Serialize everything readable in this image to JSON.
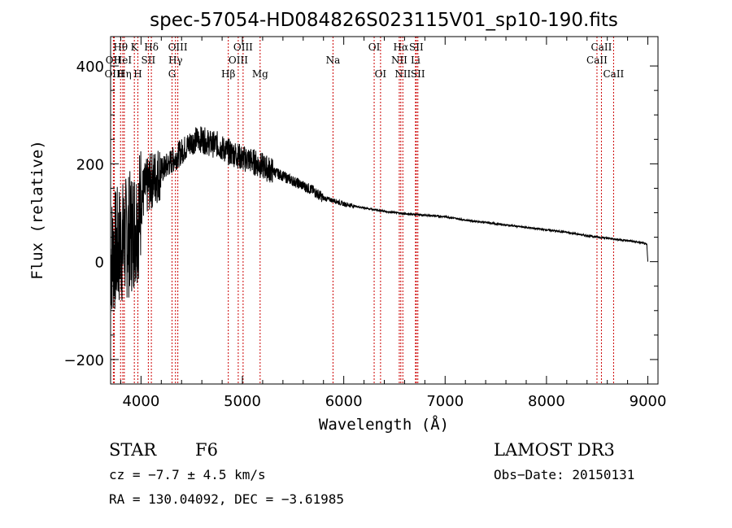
{
  "chart_data": {
    "type": "line",
    "title": "spec-57054-HD084826S023115V01_sp10-190.fits",
    "xlabel": "Wavelength (Å)",
    "ylabel": "Flux (relative)",
    "xlim": [
      3700,
      9100
    ],
    "ylim": [
      -250,
      460
    ],
    "x_ticks": [
      4000,
      5000,
      6000,
      7000,
      8000,
      9000
    ],
    "y_ticks": [
      -200,
      0,
      200,
      400
    ],
    "series": [
      {
        "name": "spectrum",
        "anchors": [
          [
            3700,
            10
          ],
          [
            3740,
            20
          ],
          [
            3780,
            30
          ],
          [
            3820,
            40
          ],
          [
            3860,
            50
          ],
          [
            3900,
            60
          ],
          [
            3940,
            75
          ],
          [
            3980,
            95
          ],
          [
            4000,
            130
          ],
          [
            4050,
            150
          ],
          [
            4100,
            165
          ],
          [
            4150,
            175
          ],
          [
            4200,
            185
          ],
          [
            4250,
            195
          ],
          [
            4300,
            205
          ],
          [
            4350,
            215
          ],
          [
            4400,
            225
          ],
          [
            4450,
            235
          ],
          [
            4500,
            245
          ],
          [
            4550,
            250
          ],
          [
            4600,
            250
          ],
          [
            4650,
            245
          ],
          [
            4700,
            240
          ],
          [
            4750,
            240
          ],
          [
            4800,
            232
          ],
          [
            4850,
            225
          ],
          [
            4900,
            222
          ],
          [
            4950,
            218
          ],
          [
            5000,
            210
          ],
          [
            5050,
            210
          ],
          [
            5100,
            205
          ],
          [
            5150,
            200
          ],
          [
            5200,
            195
          ],
          [
            5300,
            185
          ],
          [
            5400,
            175
          ],
          [
            5500,
            165
          ],
          [
            5600,
            155
          ],
          [
            5700,
            145
          ],
          [
            5800,
            130
          ],
          [
            5900,
            125
          ],
          [
            6000,
            118
          ],
          [
            6200,
            110
          ],
          [
            6400,
            103
          ],
          [
            6600,
            98
          ],
          [
            6800,
            95
          ],
          [
            7000,
            92
          ],
          [
            7200,
            85
          ],
          [
            7400,
            80
          ],
          [
            7600,
            75
          ],
          [
            7800,
            70
          ],
          [
            8000,
            65
          ],
          [
            8200,
            60
          ],
          [
            8400,
            53
          ],
          [
            8600,
            48
          ],
          [
            8800,
            43
          ],
          [
            8900,
            40
          ],
          [
            8950,
            38
          ],
          [
            8990,
            35
          ],
          [
            9000,
            0
          ]
        ]
      }
    ],
    "emission_lines": [
      {
        "label": "Hθ",
        "wavelength": 3798,
        "row": 1
      },
      {
        "label": "OII",
        "wavelength": 3727,
        "row": 2
      },
      {
        "label": "OIII",
        "wavelength": 3736,
        "row": 3
      },
      {
        "label": "K",
        "wavelength": 3934,
        "row": 1
      },
      {
        "label": "HeI",
        "wavelength": 3820,
        "row": 2
      },
      {
        "label": "Hη",
        "wavelength": 3835,
        "row": 3
      },
      {
        "label": "H",
        "wavelength": 3969,
        "row": 3
      },
      {
        "label": "Hδ",
        "wavelength": 4102,
        "row": 1
      },
      {
        "label": "SII",
        "wavelength": 4072,
        "row": 2
      },
      {
        "label": "OIII",
        "wavelength": 4363,
        "row": 1
      },
      {
        "label": "Hγ",
        "wavelength": 4340,
        "row": 2
      },
      {
        "label": "G",
        "wavelength": 4306,
        "row": 3
      },
      {
        "label": "OIII",
        "wavelength": 5007,
        "row": 1
      },
      {
        "label": "OIII",
        "wavelength": 4959,
        "row": 2
      },
      {
        "label": "Hβ",
        "wavelength": 4861,
        "row": 3
      },
      {
        "label": "Mg",
        "wavelength": 5175,
        "row": 3
      },
      {
        "label": "Na",
        "wavelength": 5894,
        "row": 2
      },
      {
        "label": "OI",
        "wavelength": 6300,
        "row": 1
      },
      {
        "label": "OI",
        "wavelength": 6363,
        "row": 3
      },
      {
        "label": "Hα",
        "wavelength": 6563,
        "row": 1
      },
      {
        "label": "NII",
        "wavelength": 6548,
        "row": 2
      },
      {
        "label": "NII",
        "wavelength": 6583,
        "row": 3
      },
      {
        "label": "SII",
        "wavelength": 6716,
        "row": 1
      },
      {
        "label": "Li",
        "wavelength": 6708,
        "row": 2
      },
      {
        "label": "SII",
        "wavelength": 6731,
        "row": 3
      },
      {
        "label": "CaII",
        "wavelength": 8542,
        "row": 1
      },
      {
        "label": "CaII",
        "wavelength": 8498,
        "row": 2
      },
      {
        "label": "CaII",
        "wavelength": 8662,
        "row": 3
      }
    ]
  },
  "info": {
    "object_type": "STAR",
    "subclass": "F6",
    "survey": "LAMOST DR3",
    "cz": "cz = −7.7 ± 4.5 km/s",
    "obs_date": "Obs−Date: 20150131",
    "coords": "RA = 130.04092, DEC =  −3.61985"
  },
  "colors": {
    "line_marker": "#cc0000",
    "spectrum": "#000000"
  }
}
